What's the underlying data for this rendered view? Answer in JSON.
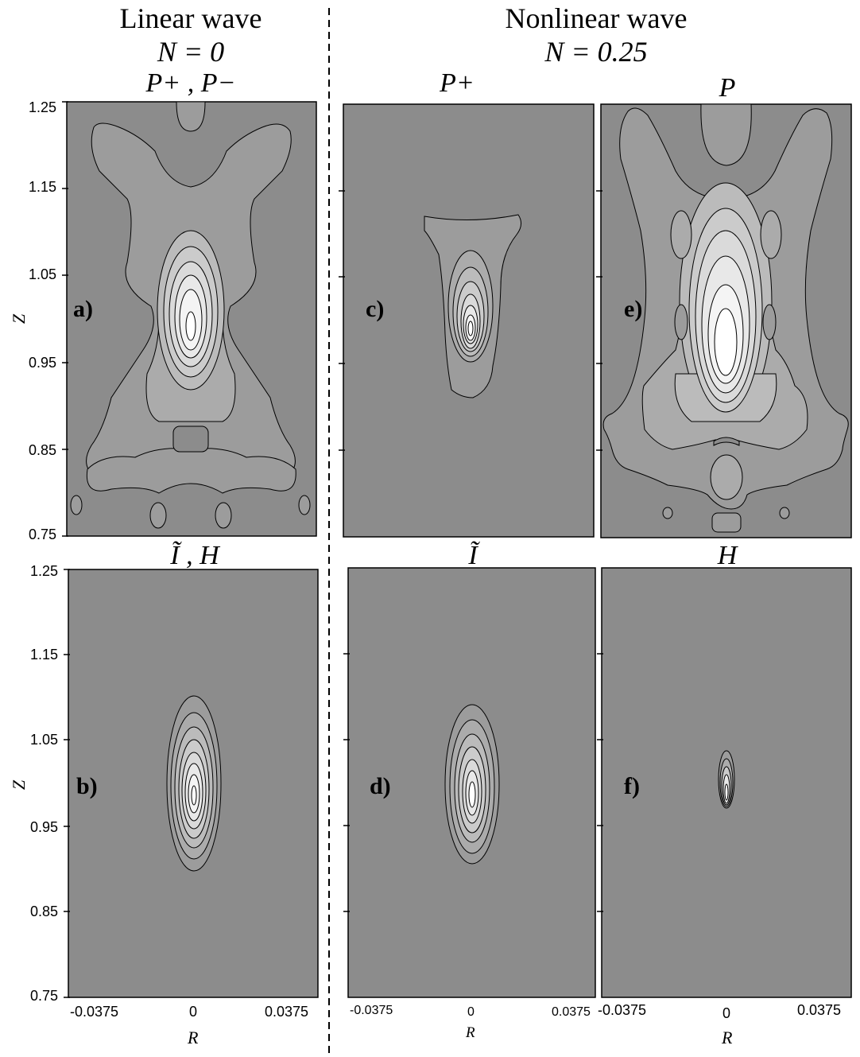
{
  "headers": {
    "linear_title": "Linear wave",
    "linear_param": "N = 0",
    "nonlinear_title": "Nonlinear wave",
    "nonlinear_param": "N = 0.25"
  },
  "plot_titles": {
    "a": "P+ , P−",
    "b": "Ĩ , H",
    "c": "P+",
    "d": "Ĩ",
    "e": "P",
    "f": "H"
  },
  "panel_labels": {
    "a": "a)",
    "b": "b)",
    "c": "c)",
    "d": "d)",
    "e": "e)",
    "f": "f)"
  },
  "axes": {
    "ylabel": "Z",
    "xlabel": "R",
    "yticks": [
      "1.25",
      "1.15",
      "1.05",
      "0.95",
      "0.85",
      "0.75"
    ],
    "xticks": [
      "-0.0375",
      "0",
      "0.0375"
    ]
  },
  "colors": {
    "background_fill": "#8c8c8c",
    "contour_fills": [
      "#9c9c9c",
      "#ababab",
      "#bbbbbb",
      "#cbcbcb",
      "#dadada",
      "#e8e8e8",
      "#f4f4f4",
      "#ffffff"
    ],
    "line": "#000000"
  }
}
